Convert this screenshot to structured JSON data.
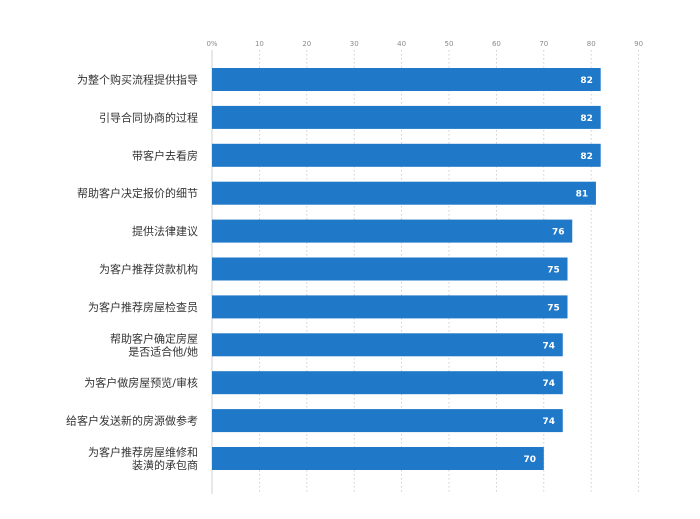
{
  "chart_data": {
    "type": "bar",
    "orientation": "horizontal",
    "title": "",
    "xlabel": "",
    "ylabel": "",
    "x_ticks": [
      "0%",
      "10",
      "20",
      "30",
      "40",
      "50",
      "60",
      "70",
      "80",
      "90"
    ],
    "xlim": [
      0,
      90
    ],
    "grid": true,
    "bar_color": "#1f78c8",
    "categories": [
      [
        "为整个购买流程提供指导"
      ],
      [
        "引导合同协商的过程"
      ],
      [
        "带客户去看房"
      ],
      [
        "帮助客户决定报价的细节"
      ],
      [
        "提供法律建议"
      ],
      [
        "为客户推荐贷款机构"
      ],
      [
        "为客户推荐房屋检查员"
      ],
      [
        "帮助客户确定房屋",
        "是否适合他/她"
      ],
      [
        "为客户做房屋预览/审核"
      ],
      [
        "给客户发送新的房源做参考"
      ],
      [
        "为客户推荐房屋维修和",
        "装潢的承包商"
      ]
    ],
    "values": [
      82,
      82,
      82,
      81,
      76,
      75,
      75,
      74,
      74,
      74,
      70
    ]
  }
}
